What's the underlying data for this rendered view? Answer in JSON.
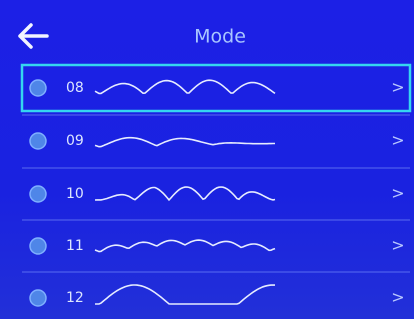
{
  "header": {
    "title": "Mode"
  },
  "items": [
    {
      "label": "08",
      "arrow": ">"
    },
    {
      "label": "09",
      "arrow": ">"
    },
    {
      "label": "10",
      "arrow": ">"
    },
    {
      "label": "11",
      "arrow": ">"
    },
    {
      "label": "12",
      "arrow": ">"
    }
  ]
}
